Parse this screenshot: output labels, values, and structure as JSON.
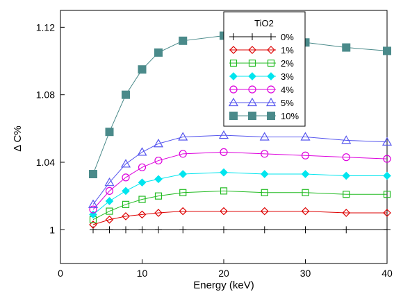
{
  "chart_data": {
    "type": "line",
    "title": "",
    "xlabel": "Energy (keV)",
    "ylabel": "Δ C%",
    "xlim": [
      0,
      40
    ],
    "ylim": [
      0.98,
      1.13
    ],
    "xticks": [
      "0",
      "10",
      "20",
      "30",
      "40"
    ],
    "yticks": [
      "1",
      "1.04",
      "1.08",
      "1.12"
    ],
    "grid": false,
    "legend_title": "TiO2",
    "legend_position": "top-center",
    "x": [
      4,
      6,
      8,
      10,
      12,
      15,
      20,
      25,
      30,
      35,
      40
    ],
    "series": [
      {
        "name": "0%",
        "marker": "plus",
        "color": "#000000",
        "values": [
          1.0,
          1.0,
          1.0,
          1.0,
          1.0,
          1.0,
          1.0,
          1.0,
          1.0,
          1.0,
          1.0
        ]
      },
      {
        "name": "1%",
        "marker": "diamond-open",
        "color": "#dd0000",
        "values": [
          1.003,
          1.006,
          1.008,
          1.009,
          1.01,
          1.011,
          1.011,
          1.011,
          1.011,
          1.01,
          1.01
        ]
      },
      {
        "name": "2%",
        "marker": "square-open",
        "color": "#22bb22",
        "values": [
          1.006,
          1.011,
          1.015,
          1.018,
          1.02,
          1.022,
          1.023,
          1.022,
          1.022,
          1.021,
          1.021
        ]
      },
      {
        "name": "3%",
        "marker": "diamond-filled",
        "color": "#00e5ee",
        "values": [
          1.009,
          1.017,
          1.023,
          1.028,
          1.03,
          1.033,
          1.034,
          1.033,
          1.033,
          1.032,
          1.032
        ]
      },
      {
        "name": "4%",
        "marker": "circle-open",
        "color": "#dd00dd",
        "values": [
          1.012,
          1.023,
          1.031,
          1.037,
          1.041,
          1.045,
          1.046,
          1.045,
          1.044,
          1.043,
          1.042
        ]
      },
      {
        "name": "5%",
        "marker": "triangle-open",
        "color": "#5555ee",
        "values": [
          1.015,
          1.028,
          1.039,
          1.046,
          1.051,
          1.055,
          1.056,
          1.055,
          1.055,
          1.053,
          1.052
        ]
      },
      {
        "name": "10%",
        "marker": "square-filled",
        "color": "#4a8a8a",
        "values": [
          1.033,
          1.058,
          1.08,
          1.095,
          1.105,
          1.112,
          1.115,
          1.114,
          1.111,
          1.108,
          1.106
        ]
      }
    ]
  }
}
